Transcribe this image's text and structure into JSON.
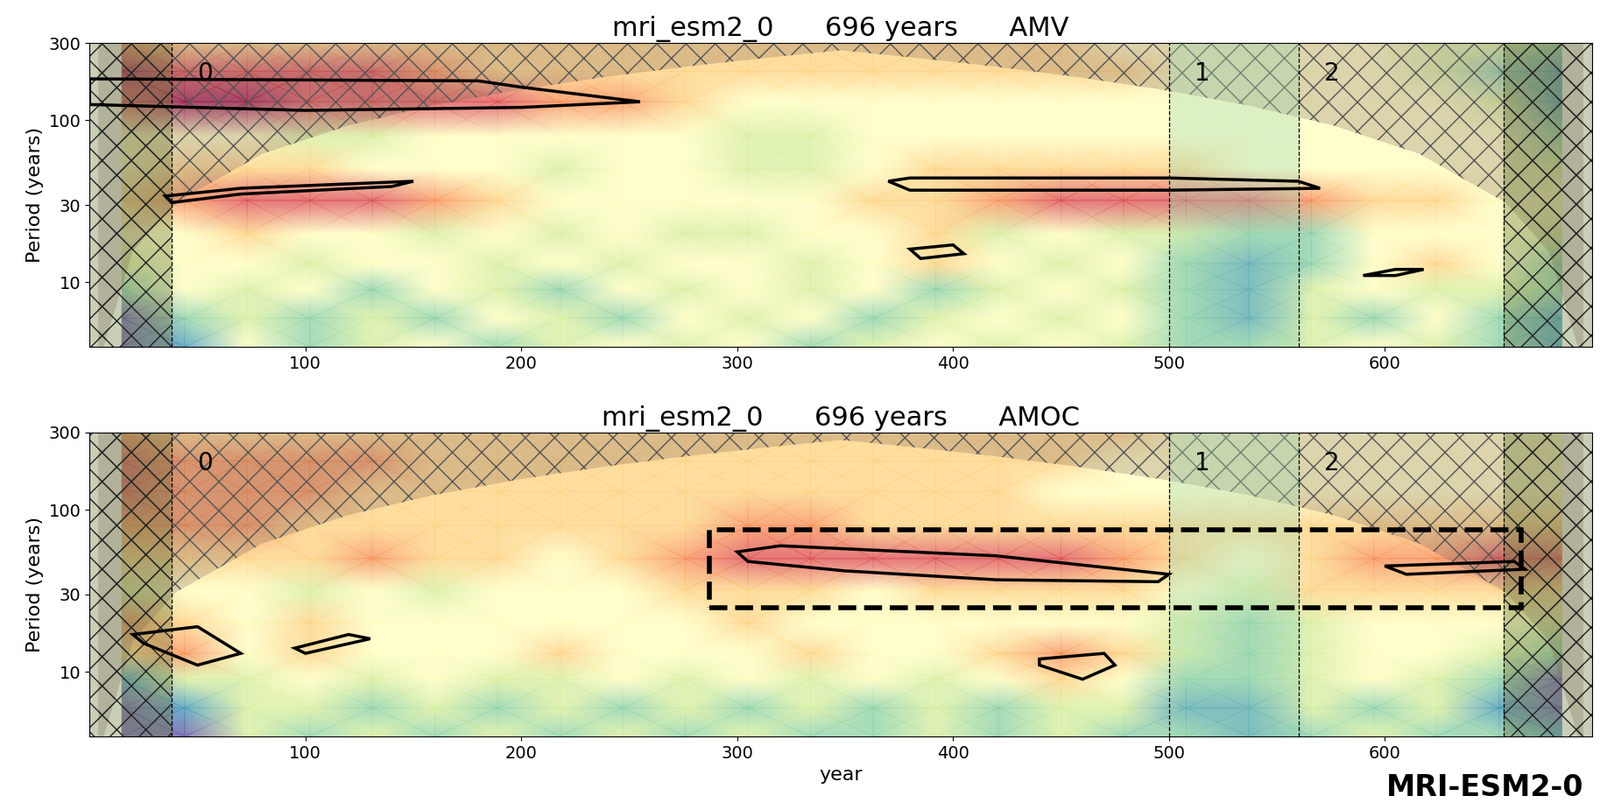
{
  "caption": "MRI-ESM2-0",
  "chart_data": [
    {
      "type": "heatmap",
      "title": "mri_esm2_0      696 years      AMV",
      "ylabel": "Period (years)",
      "log": "y",
      "xlim": [
        0,
        696
      ],
      "ylim": [
        4,
        300
      ],
      "xticks": [
        100,
        200,
        300,
        400,
        500,
        600
      ],
      "yticks": [
        10,
        30,
        100,
        300
      ],
      "x": [
        15,
        44,
        73,
        102,
        131,
        160,
        189,
        218,
        247,
        276,
        305,
        334,
        363,
        392,
        421,
        450,
        479,
        508,
        537,
        566,
        595,
        624,
        653,
        682
      ],
      "y": [
        4,
        6,
        9,
        13,
        20,
        32,
        50,
        80,
        130,
        200,
        300
      ],
      "cells": [
        [
          1,
          2,
          5,
          3,
          4,
          5,
          3,
          4,
          5,
          4,
          5,
          3,
          4,
          5,
          4,
          5,
          4,
          3,
          3,
          4,
          5,
          4,
          3,
          2
        ],
        [
          1,
          3,
          4,
          3,
          4,
          3,
          5,
          4,
          3,
          5,
          4,
          5,
          3,
          4,
          5,
          4,
          5,
          3,
          2,
          4,
          3,
          5,
          3,
          2
        ],
        [
          3,
          5,
          4,
          5,
          3,
          5,
          4,
          3,
          5,
          4,
          5,
          4,
          5,
          3,
          4,
          5,
          4,
          3,
          2,
          4,
          5,
          4,
          4,
          3
        ],
        [
          4,
          5,
          5,
          4,
          5,
          5,
          4,
          5,
          4,
          5,
          5,
          4,
          5,
          6,
          5,
          4,
          5,
          3,
          2,
          3,
          5,
          6,
          5,
          3
        ],
        [
          5,
          5,
          6,
          5,
          5,
          4,
          5,
          4,
          5,
          4,
          4,
          5,
          5,
          6,
          4,
          5,
          4,
          4,
          3,
          3,
          5,
          5,
          5,
          4
        ],
        [
          6,
          7,
          8,
          8,
          8,
          7,
          6,
          5,
          5,
          5,
          5,
          5,
          6,
          6,
          7,
          8,
          8,
          8,
          8,
          7,
          6,
          6,
          5,
          5
        ],
        [
          5,
          6,
          6,
          6,
          5,
          5,
          5,
          4,
          5,
          5,
          4,
          4,
          5,
          6,
          6,
          6,
          6,
          6,
          5,
          5,
          5,
          5,
          5,
          4
        ],
        [
          5,
          5,
          5,
          4,
          4,
          5,
          5,
          5,
          5,
          5,
          4,
          4,
          5,
          5,
          5,
          5,
          5,
          5,
          5,
          5,
          5,
          5,
          5,
          3
        ],
        [
          8,
          9,
          9,
          8,
          8,
          8,
          8,
          7,
          7,
          6,
          5,
          5,
          5,
          5,
          5,
          5,
          5,
          5,
          5,
          5,
          5,
          5,
          4,
          2
        ],
        [
          9,
          8,
          8,
          8,
          8,
          7,
          6,
          6,
          6,
          6,
          6,
          6,
          6,
          6,
          6,
          6,
          6,
          5,
          5,
          5,
          5,
          4,
          3,
          2
        ],
        [
          7,
          6,
          6,
          6,
          6,
          6,
          6,
          6,
          6,
          6,
          6,
          6,
          6,
          6,
          6,
          6,
          5,
          5,
          5,
          5,
          5,
          4,
          4,
          3
        ]
      ],
      "contours": [
        [
          [
            0,
            180
          ],
          [
            180,
            175
          ],
          [
            200,
            160
          ],
          [
            255,
            130
          ],
          [
            200,
            120
          ],
          [
            100,
            115
          ],
          [
            0,
            125
          ]
        ],
        [
          [
            35,
            34
          ],
          [
            70,
            38
          ],
          [
            150,
            42
          ],
          [
            140,
            39
          ],
          [
            70,
            35
          ],
          [
            38,
            31
          ]
        ],
        [
          [
            370,
            42
          ],
          [
            380,
            44
          ],
          [
            500,
            44
          ],
          [
            560,
            42
          ],
          [
            570,
            38
          ],
          [
            500,
            37
          ],
          [
            380,
            37
          ]
        ],
        [
          [
            380,
            16
          ],
          [
            400,
            17
          ],
          [
            405,
            15
          ],
          [
            385,
            14
          ]
        ],
        [
          [
            590,
            11
          ],
          [
            605,
            12
          ],
          [
            618,
            12
          ],
          [
            605,
            11
          ]
        ]
      ],
      "coi": {
        "x": [
          4,
          20,
          40,
          80,
          120,
          160,
          200,
          240,
          280,
          320,
          348,
          376,
          416,
          456,
          496,
          536,
          576,
          616,
          656,
          676,
          692
        ],
        "period": [
          3.1,
          15.5,
          31,
          62,
          93,
          124,
          155,
          186,
          217,
          248,
          270,
          248,
          217,
          186,
          155,
          124,
          93,
          62,
          31,
          15.5,
          3.1
        ]
      },
      "segments": [
        {
          "start": 38,
          "label": "0"
        },
        {
          "start": 500,
          "label": "1"
        },
        {
          "start": 560,
          "label": "2"
        }
      ],
      "end": 655
    },
    {
      "type": "heatmap",
      "title": "mri_esm2_0      696 years      AMOC",
      "xlabel": "year",
      "ylabel": "Period (years)",
      "log": "y",
      "xlim": [
        0,
        696
      ],
      "ylim": [
        4,
        300
      ],
      "xticks": [
        100,
        200,
        300,
        400,
        500,
        600
      ],
      "yticks": [
        10,
        30,
        100,
        300
      ],
      "x": [
        15,
        44,
        73,
        102,
        131,
        160,
        189,
        218,
        247,
        276,
        305,
        334,
        363,
        392,
        421,
        450,
        479,
        508,
        537,
        566,
        595,
        624,
        653,
        682
      ],
      "y": [
        4,
        6,
        9,
        13,
        20,
        32,
        50,
        80,
        130,
        200,
        300
      ],
      "cells": [
        [
          1,
          1,
          4,
          3,
          4,
          3,
          4,
          3,
          4,
          3,
          4,
          3,
          3,
          4,
          3,
          4,
          3,
          3,
          2,
          3,
          4,
          3,
          3,
          2
        ],
        [
          1,
          2,
          4,
          4,
          3,
          4,
          3,
          4,
          3,
          4,
          3,
          4,
          3,
          4,
          3,
          4,
          4,
          2,
          2,
          4,
          3,
          4,
          2,
          1
        ],
        [
          2,
          4,
          4,
          5,
          4,
          5,
          4,
          4,
          5,
          4,
          5,
          4,
          5,
          4,
          5,
          6,
          5,
          3,
          3,
          4,
          5,
          4,
          3,
          1
        ],
        [
          6,
          7,
          5,
          6,
          5,
          5,
          5,
          6,
          5,
          5,
          5,
          6,
          5,
          5,
          6,
          7,
          6,
          4,
          3,
          4,
          5,
          5,
          4,
          3
        ],
        [
          7,
          6,
          5,
          6,
          5,
          5,
          5,
          5,
          5,
          5,
          6,
          5,
          5,
          5,
          5,
          5,
          5,
          4,
          3,
          4,
          5,
          5,
          5,
          4
        ],
        [
          4,
          5,
          5,
          4,
          5,
          4,
          5,
          5,
          5,
          6,
          6,
          6,
          5,
          6,
          6,
          6,
          6,
          5,
          4,
          6,
          6,
          6,
          6,
          6
        ],
        [
          6,
          6,
          6,
          6,
          7,
          6,
          6,
          5,
          6,
          7,
          8,
          8,
          8,
          8,
          8,
          8,
          7,
          6,
          5,
          6,
          7,
          7,
          8,
          8
        ],
        [
          7,
          7,
          7,
          6,
          6,
          6,
          6,
          6,
          6,
          6,
          7,
          7,
          6,
          6,
          6,
          6,
          6,
          6,
          6,
          6,
          6,
          6,
          6,
          6
        ],
        [
          8,
          7,
          7,
          7,
          6,
          6,
          6,
          6,
          6,
          6,
          6,
          6,
          6,
          6,
          6,
          5,
          5,
          5,
          5,
          5,
          5,
          5,
          5,
          5
        ],
        [
          8,
          7,
          7,
          7,
          7,
          6,
          6,
          6,
          6,
          6,
          6,
          6,
          6,
          6,
          6,
          6,
          5,
          5,
          5,
          5,
          5,
          5,
          5,
          5
        ],
        [
          7,
          6,
          6,
          6,
          6,
          6,
          6,
          6,
          6,
          6,
          6,
          6,
          6,
          6,
          6,
          6,
          6,
          5,
          5,
          5,
          5,
          5,
          5,
          5
        ]
      ],
      "contours": [
        [
          [
            300,
            55
          ],
          [
            320,
            60
          ],
          [
            420,
            52
          ],
          [
            500,
            40
          ],
          [
            495,
            36
          ],
          [
            420,
            37
          ],
          [
            350,
            42
          ],
          [
            305,
            48
          ]
        ],
        [
          [
            600,
            45
          ],
          [
            660,
            48
          ],
          [
            665,
            43
          ],
          [
            610,
            40
          ]
        ],
        [
          [
            20,
            17
          ],
          [
            50,
            19
          ],
          [
            70,
            13
          ],
          [
            50,
            11
          ],
          [
            25,
            15
          ]
        ],
        [
          [
            95,
            14
          ],
          [
            120,
            17
          ],
          [
            130,
            16
          ],
          [
            100,
            13
          ]
        ],
        [
          [
            440,
            12
          ],
          [
            470,
            13
          ],
          [
            475,
            11
          ],
          [
            460,
            9
          ],
          [
            440,
            11
          ]
        ]
      ],
      "box": {
        "x": [
          287,
          663
        ],
        "y": [
          25,
          75
        ]
      },
      "coi": {
        "x": [
          4,
          20,
          40,
          80,
          120,
          160,
          200,
          240,
          280,
          320,
          348,
          376,
          416,
          456,
          496,
          536,
          576,
          616,
          656,
          676,
          692
        ],
        "period": [
          3.1,
          15.5,
          31,
          62,
          93,
          124,
          155,
          186,
          217,
          248,
          270,
          248,
          217,
          186,
          155,
          124,
          93,
          62,
          31,
          15.5,
          3.1
        ]
      },
      "segments": [
        {
          "start": 38,
          "label": "0"
        },
        {
          "start": 500,
          "label": "1"
        },
        {
          "start": 560,
          "label": "2"
        }
      ],
      "end": 655
    }
  ]
}
